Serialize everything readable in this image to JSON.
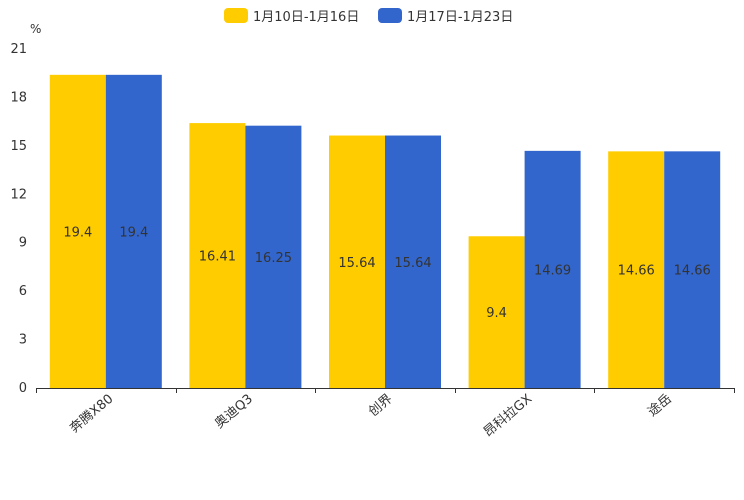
{
  "chart_data": {
    "type": "bar",
    "title": "",
    "xlabel": "",
    "ylabel": "%",
    "ylim": [
      0,
      21
    ],
    "yticks": [
      0,
      3,
      6,
      9,
      12,
      15,
      18,
      21
    ],
    "grid": false,
    "legend_position": "top-center",
    "categories": [
      "奔腾X80",
      "奥迪Q3",
      "创界",
      "昂科拉GX",
      "途岳"
    ],
    "series": [
      {
        "name": "1月10日-1月16日",
        "color": "#FFCC00",
        "values": [
          19.4,
          16.41,
          15.64,
          9.4,
          14.66
        ],
        "labels": [
          "19.4",
          "16.41",
          "15.64",
          "9.4",
          "14.66"
        ]
      },
      {
        "name": "1月17日-1月23日",
        "color": "#3366CC",
        "values": [
          19.4,
          16.25,
          15.64,
          14.69,
          14.66
        ],
        "labels": [
          "19.4",
          "16.25",
          "15.64",
          "14.69",
          "14.66"
        ]
      }
    ]
  }
}
